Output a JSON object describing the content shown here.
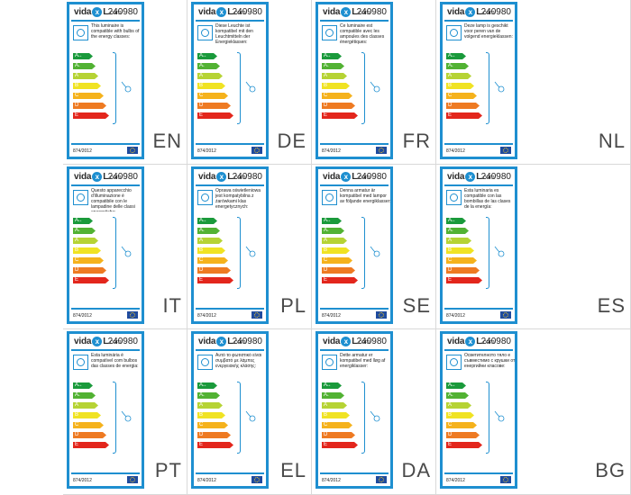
{
  "labels": [
    {
      "lang": "EN",
      "code": "240980",
      "text": "This luminaire is compatible with bulbs of the energy classes:"
    },
    {
      "lang": "DE",
      "code": "240980",
      "text": "Diese Leuchte ist kompatibel mit den Leuchtmitteln der Energieklassen:"
    },
    {
      "lang": "FR",
      "code": "240980",
      "text": "Ce luminaire est compatible avec les ampoules des classes énergétiques:"
    },
    {
      "lang": "NL",
      "code": "240980",
      "text": "Deze lamp is geschikt voor peren van de volgend energieklassen:"
    },
    {
      "lang": "IT",
      "code": "240980",
      "text": "Questo apparecchio d'illuminazione è compatibile con le lampadine delle classi energetiche:"
    },
    {
      "lang": "PL",
      "code": "240980",
      "text": "Oprawa oświetleniowa jest kompatybilna z żarówkami klas energetycznych:"
    },
    {
      "lang": "SE",
      "code": "240980",
      "text": "Denna armatur är kompatibel med lampor av följande energiklasser:"
    },
    {
      "lang": "ES",
      "code": "240980",
      "text": "Esta luminaria es compatible con las bombillas de las clases de la energía:"
    },
    {
      "lang": "PT",
      "code": "240980",
      "text": "Esta luminária é compatível com bulbos das classes de energia:"
    },
    {
      "lang": "EL",
      "code": "240980",
      "text": "Αυτό το φωτιστικό είναι συμβατό με λάμπες ενεργειακής κλάσης:"
    },
    {
      "lang": "DA",
      "code": "240980",
      "text": "Dette armatur er kompatibel med lløg af energiklasser:"
    },
    {
      "lang": "BG",
      "code": "240980",
      "text": "Осветителното тяло е съвместимо с крушки от енергийни класове:"
    }
  ],
  "brand": {
    "pre": "vida",
    "mark": "x",
    "post": "L",
    "com": ".com"
  },
  "regulation": "874/2012",
  "energy_classes": [
    {
      "label": "A",
      "sup": "++",
      "color": "#1a9a3b"
    },
    {
      "label": "A",
      "sup": "+",
      "color": "#52b233"
    },
    {
      "label": "A",
      "sup": "",
      "color": "#b6d334"
    },
    {
      "label": "B",
      "sup": "",
      "color": "#f0e323"
    },
    {
      "label": "C",
      "sup": "",
      "color": "#f5b21c"
    },
    {
      "label": "D",
      "sup": "",
      "color": "#ee7a22"
    },
    {
      "label": "E",
      "sup": "",
      "color": "#e3261c"
    }
  ],
  "colors": {
    "frame": "#1e8fd0",
    "eu_blue": "#1f4b9e",
    "eu_star": "#ffd21f"
  },
  "icons": {
    "header": "bulb-icon",
    "lamp": "lamp-icon",
    "eu": "eu-flag-icon"
  }
}
